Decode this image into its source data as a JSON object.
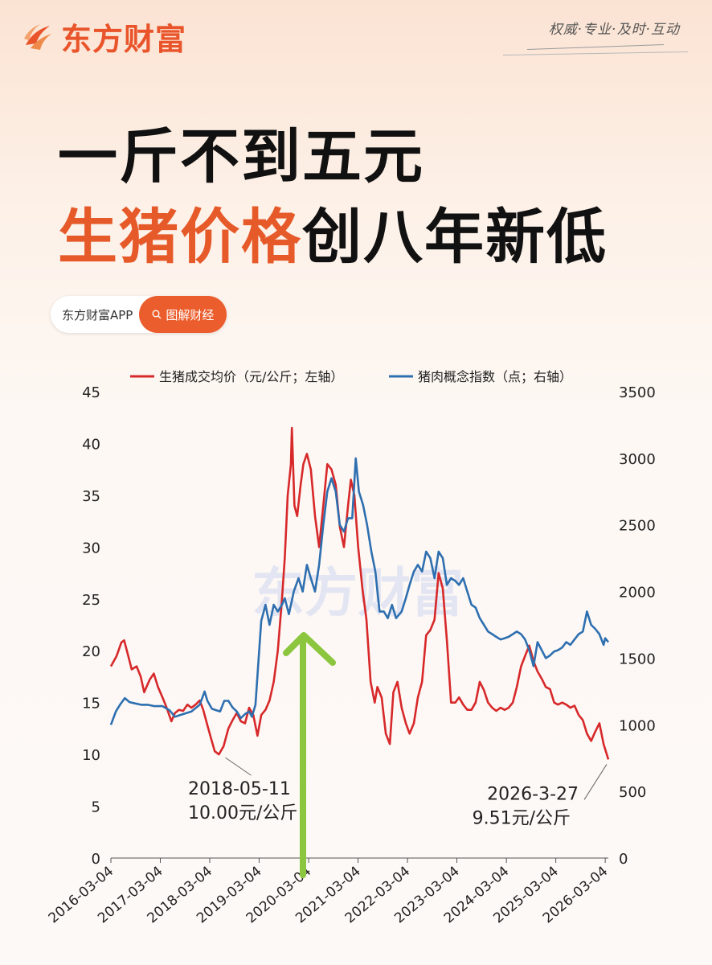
{
  "header": {
    "brand_name": "东方财富",
    "slogan": "权威·专业·及时·互动"
  },
  "headline": {
    "line1": "一斤不到五元",
    "line2_accent": "生猪价格",
    "line2_rest": "创八年新低"
  },
  "source_pill": {
    "source": "东方财富APP",
    "button": "图解财经"
  },
  "colors": {
    "brand": "#e9542a",
    "price_series": "#d7282a",
    "index_series": "#2e6fb0",
    "arrow": "#8cc63f"
  },
  "chart_data": {
    "type": "line",
    "watermark": "东方财富",
    "legend_position": "top",
    "grid": false,
    "x_tick_labels": [
      "2016-03-04",
      "2017-03-04",
      "2018-03-04",
      "2019-03-04",
      "2020-03-04",
      "2021-03-04",
      "2022-03-04",
      "2023-03-04",
      "2024-03-04",
      "2025-03-04",
      "2026-03-04"
    ],
    "y_left": {
      "ticks": [
        0,
        5,
        10,
        15,
        20,
        25,
        30,
        35,
        40,
        45
      ],
      "range": [
        0,
        45
      ]
    },
    "y_right": {
      "ticks": [
        0,
        500,
        1000,
        1500,
        2000,
        2500,
        3000,
        3500
      ],
      "range": [
        0,
        3500
      ]
    },
    "series": [
      {
        "name": "生猪成交均价（元/公斤；左轴）",
        "axis": "left",
        "color": "#d7282a",
        "points": [
          [
            "2016-03-04",
            18.5
          ],
          [
            "2016-04-15",
            19.5
          ],
          [
            "2016-05-20",
            20.8
          ],
          [
            "2016-06-10",
            21
          ],
          [
            "2016-07-10",
            19.5
          ],
          [
            "2016-08-05",
            18.2
          ],
          [
            "2016-09-10",
            18.5
          ],
          [
            "2016-10-10",
            17.5
          ],
          [
            "2016-11-05",
            16
          ],
          [
            "2016-12-15",
            17.2
          ],
          [
            "2017-01-15",
            17.8
          ],
          [
            "2017-02-15",
            16.5
          ],
          [
            "2017-03-20",
            15.5
          ],
          [
            "2017-04-20",
            14.5
          ],
          [
            "2017-05-25",
            13.2
          ],
          [
            "2017-06-20",
            14
          ],
          [
            "2017-07-20",
            14.3
          ],
          [
            "2017-08-20",
            14.2
          ],
          [
            "2017-09-20",
            14.8
          ],
          [
            "2017-10-20",
            14.5
          ],
          [
            "2017-11-20",
            14.8
          ],
          [
            "2017-12-20",
            15.2
          ],
          [
            "2018-01-15",
            14.3
          ],
          [
            "2018-02-15",
            12.8
          ],
          [
            "2018-03-15",
            11.5
          ],
          [
            "2018-04-10",
            10.3
          ],
          [
            "2018-05-11",
            10.0
          ],
          [
            "2018-06-15",
            10.8
          ],
          [
            "2018-07-20",
            12.5
          ],
          [
            "2018-08-20",
            13.3
          ],
          [
            "2018-09-20",
            14
          ],
          [
            "2018-10-20",
            13.2
          ],
          [
            "2018-11-20",
            13
          ],
          [
            "2018-12-20",
            14.5
          ],
          [
            "2019-01-20",
            13.8
          ],
          [
            "2019-02-20",
            11.8
          ],
          [
            "2019-03-20",
            13.8
          ],
          [
            "2019-04-20",
            14.3
          ],
          [
            "2019-05-20",
            15.2
          ],
          [
            "2019-06-20",
            17
          ],
          [
            "2019-07-20",
            20
          ],
          [
            "2019-08-20",
            25
          ],
          [
            "2019-09-10",
            29
          ],
          [
            "2019-10-01",
            35
          ],
          [
            "2019-10-25",
            38
          ],
          [
            "2019-11-01",
            41.5
          ],
          [
            "2019-11-20",
            34
          ],
          [
            "2019-12-10",
            33
          ],
          [
            "2020-01-05",
            36
          ],
          [
            "2020-01-25",
            38
          ],
          [
            "2020-02-20",
            39
          ],
          [
            "2020-03-20",
            37.5
          ],
          [
            "2020-04-20",
            33
          ],
          [
            "2020-05-20",
            30
          ],
          [
            "2020-06-20",
            34
          ],
          [
            "2020-07-20",
            38
          ],
          [
            "2020-08-20",
            37.5
          ],
          [
            "2020-09-20",
            36
          ],
          [
            "2020-10-20",
            32
          ],
          [
            "2020-11-20",
            30
          ],
          [
            "2020-12-20",
            34
          ],
          [
            "2021-01-10",
            36.5
          ],
          [
            "2021-02-05",
            35
          ],
          [
            "2021-03-05",
            30
          ],
          [
            "2021-04-05",
            26
          ],
          [
            "2021-05-05",
            23
          ],
          [
            "2021-06-05",
            17
          ],
          [
            "2021-07-05",
            15
          ],
          [
            "2021-07-25",
            16.5
          ],
          [
            "2021-08-25",
            15.5
          ],
          [
            "2021-09-25",
            12
          ],
          [
            "2021-10-25",
            11
          ],
          [
            "2021-11-20",
            16
          ],
          [
            "2021-12-20",
            17
          ],
          [
            "2022-01-20",
            14.5
          ],
          [
            "2022-02-20",
            13
          ],
          [
            "2022-03-20",
            12
          ],
          [
            "2022-04-20",
            13
          ],
          [
            "2022-05-20",
            15.5
          ],
          [
            "2022-06-20",
            17
          ],
          [
            "2022-07-20",
            21.5
          ],
          [
            "2022-08-20",
            22
          ],
          [
            "2022-09-20",
            23
          ],
          [
            "2022-10-20",
            27.5
          ],
          [
            "2022-11-20",
            26
          ],
          [
            "2022-12-20",
            21
          ],
          [
            "2023-01-20",
            15
          ],
          [
            "2023-02-20",
            15
          ],
          [
            "2023-03-20",
            15.5
          ],
          [
            "2023-04-20",
            14.8
          ],
          [
            "2023-05-20",
            14.3
          ],
          [
            "2023-06-20",
            14.3
          ],
          [
            "2023-07-20",
            15
          ],
          [
            "2023-08-20",
            17
          ],
          [
            "2023-09-20",
            16.2
          ],
          [
            "2023-10-20",
            15
          ],
          [
            "2023-11-20",
            14.5
          ],
          [
            "2023-12-20",
            14.2
          ],
          [
            "2024-01-20",
            14.5
          ],
          [
            "2024-02-20",
            14.3
          ],
          [
            "2024-03-20",
            14.5
          ],
          [
            "2024-04-20",
            15
          ],
          [
            "2024-05-20",
            16.5
          ],
          [
            "2024-06-20",
            18.5
          ],
          [
            "2024-07-20",
            19.5
          ],
          [
            "2024-08-20",
            20.5
          ],
          [
            "2024-09-20",
            19
          ],
          [
            "2024-10-20",
            18
          ],
          [
            "2024-11-20",
            17.3
          ],
          [
            "2024-12-20",
            16.5
          ],
          [
            "2025-01-20",
            16.3
          ],
          [
            "2025-02-20",
            15
          ],
          [
            "2025-03-20",
            14.8
          ],
          [
            "2025-04-20",
            15
          ],
          [
            "2025-05-20",
            14.8
          ],
          [
            "2025-06-20",
            14.5
          ],
          [
            "2025-07-20",
            14.7
          ],
          [
            "2025-08-20",
            13.8
          ],
          [
            "2025-09-20",
            13.3
          ],
          [
            "2025-10-20",
            12
          ],
          [
            "2025-11-20",
            11.3
          ],
          [
            "2025-12-20",
            12.2
          ],
          [
            "2026-01-20",
            13
          ],
          [
            "2026-02-20",
            11
          ],
          [
            "2026-03-27",
            9.51
          ]
        ]
      },
      {
        "name": "猪肉概念指数（点；右轴）",
        "axis": "right",
        "color": "#2e6fb0",
        "points": [
          [
            "2016-03-04",
            1000
          ],
          [
            "2016-04-10",
            1100
          ],
          [
            "2016-05-10",
            1150
          ],
          [
            "2016-06-15",
            1200
          ],
          [
            "2016-07-20",
            1170
          ],
          [
            "2016-09-01",
            1160
          ],
          [
            "2016-10-15",
            1150
          ],
          [
            "2016-12-01",
            1150
          ],
          [
            "2017-01-20",
            1140
          ],
          [
            "2017-03-20",
            1140
          ],
          [
            "2017-05-10",
            1110
          ],
          [
            "2017-06-20",
            1060
          ],
          [
            "2017-08-20",
            1080
          ],
          [
            "2017-10-20",
            1100
          ],
          [
            "2017-12-20",
            1150
          ],
          [
            "2018-01-25",
            1250
          ],
          [
            "2018-02-15",
            1180
          ],
          [
            "2018-03-20",
            1120
          ],
          [
            "2018-04-20",
            1110
          ],
          [
            "2018-05-20",
            1100
          ],
          [
            "2018-06-20",
            1180
          ],
          [
            "2018-07-20",
            1180
          ],
          [
            "2018-08-20",
            1130
          ],
          [
            "2018-09-20",
            1100
          ],
          [
            "2018-10-20",
            1050
          ],
          [
            "2018-11-20",
            1080
          ],
          [
            "2018-12-20",
            1100
          ],
          [
            "2019-01-10",
            1060
          ],
          [
            "2019-02-05",
            1150
          ],
          [
            "2019-02-25",
            1450
          ],
          [
            "2019-03-20",
            1780
          ],
          [
            "2019-04-20",
            1900
          ],
          [
            "2019-05-20",
            1750
          ],
          [
            "2019-06-20",
            1900
          ],
          [
            "2019-07-20",
            1850
          ],
          [
            "2019-08-20",
            1900
          ],
          [
            "2019-09-10",
            1950
          ],
          [
            "2019-10-10",
            1830
          ],
          [
            "2019-11-15",
            2000
          ],
          [
            "2019-12-20",
            2100
          ],
          [
            "2020-01-20",
            2000
          ],
          [
            "2020-02-20",
            2200
          ],
          [
            "2020-03-20",
            2100
          ],
          [
            "2020-04-20",
            2000
          ],
          [
            "2020-05-20",
            2200
          ],
          [
            "2020-06-20",
            2500
          ],
          [
            "2020-07-20",
            2750
          ],
          [
            "2020-08-20",
            2850
          ],
          [
            "2020-09-20",
            2750
          ],
          [
            "2020-10-20",
            2500
          ],
          [
            "2020-11-20",
            2450
          ],
          [
            "2020-12-20",
            2550
          ],
          [
            "2021-01-20",
            2550
          ],
          [
            "2021-02-15",
            3000
          ],
          [
            "2021-03-10",
            2750
          ],
          [
            "2021-04-10",
            2650
          ],
          [
            "2021-05-10",
            2500
          ],
          [
            "2021-06-10",
            2300
          ],
          [
            "2021-07-10",
            2150
          ],
          [
            "2021-08-10",
            1850
          ],
          [
            "2021-09-10",
            1850
          ],
          [
            "2021-10-10",
            1800
          ],
          [
            "2021-11-10",
            1900
          ],
          [
            "2021-12-10",
            1800
          ],
          [
            "2022-01-20",
            1850
          ],
          [
            "2022-02-20",
            1950
          ],
          [
            "2022-03-20",
            2050
          ],
          [
            "2022-04-20",
            2150
          ],
          [
            "2022-05-20",
            2200
          ],
          [
            "2022-06-20",
            2150
          ],
          [
            "2022-07-20",
            2300
          ],
          [
            "2022-08-20",
            2250
          ],
          [
            "2022-09-20",
            2100
          ],
          [
            "2022-10-20",
            2300
          ],
          [
            "2022-11-20",
            2250
          ],
          [
            "2022-12-20",
            2050
          ],
          [
            "2023-01-20",
            2100
          ],
          [
            "2023-02-20",
            2080
          ],
          [
            "2023-03-20",
            2050
          ],
          [
            "2023-04-20",
            2100
          ],
          [
            "2023-05-20",
            2000
          ],
          [
            "2023-06-20",
            1900
          ],
          [
            "2023-07-20",
            1880
          ],
          [
            "2023-08-20",
            1800
          ],
          [
            "2023-09-20",
            1750
          ],
          [
            "2023-10-20",
            1700
          ],
          [
            "2023-11-20",
            1680
          ],
          [
            "2023-12-20",
            1660
          ],
          [
            "2024-01-20",
            1640
          ],
          [
            "2024-02-20",
            1650
          ],
          [
            "2024-03-20",
            1660
          ],
          [
            "2024-04-20",
            1680
          ],
          [
            "2024-05-20",
            1700
          ],
          [
            "2024-06-20",
            1680
          ],
          [
            "2024-07-20",
            1640
          ],
          [
            "2024-08-20",
            1560
          ],
          [
            "2024-09-20",
            1440
          ],
          [
            "2024-10-20",
            1620
          ],
          [
            "2024-11-20",
            1560
          ],
          [
            "2024-12-20",
            1500
          ],
          [
            "2025-01-20",
            1520
          ],
          [
            "2025-02-20",
            1550
          ],
          [
            "2025-03-20",
            1560
          ],
          [
            "2025-04-20",
            1580
          ],
          [
            "2025-05-20",
            1620
          ],
          [
            "2025-06-20",
            1600
          ],
          [
            "2025-07-20",
            1640
          ],
          [
            "2025-08-20",
            1680
          ],
          [
            "2025-09-20",
            1700
          ],
          [
            "2025-10-20",
            1850
          ],
          [
            "2025-11-20",
            1750
          ],
          [
            "2025-12-20",
            1720
          ],
          [
            "2026-01-20",
            1680
          ],
          [
            "2026-02-20",
            1600
          ],
          [
            "2026-03-04",
            1650
          ],
          [
            "2026-03-27",
            1620
          ]
        ]
      }
    ],
    "annotations": [
      {
        "date": "2018-05-11",
        "value": 10.0,
        "line1": "2018-05-11",
        "line2": "10.00元/公斤"
      },
      {
        "date": "2026-03-27",
        "value": 9.51,
        "line1": "2026-3-27",
        "line2": "9.51元/公斤"
      }
    ]
  }
}
